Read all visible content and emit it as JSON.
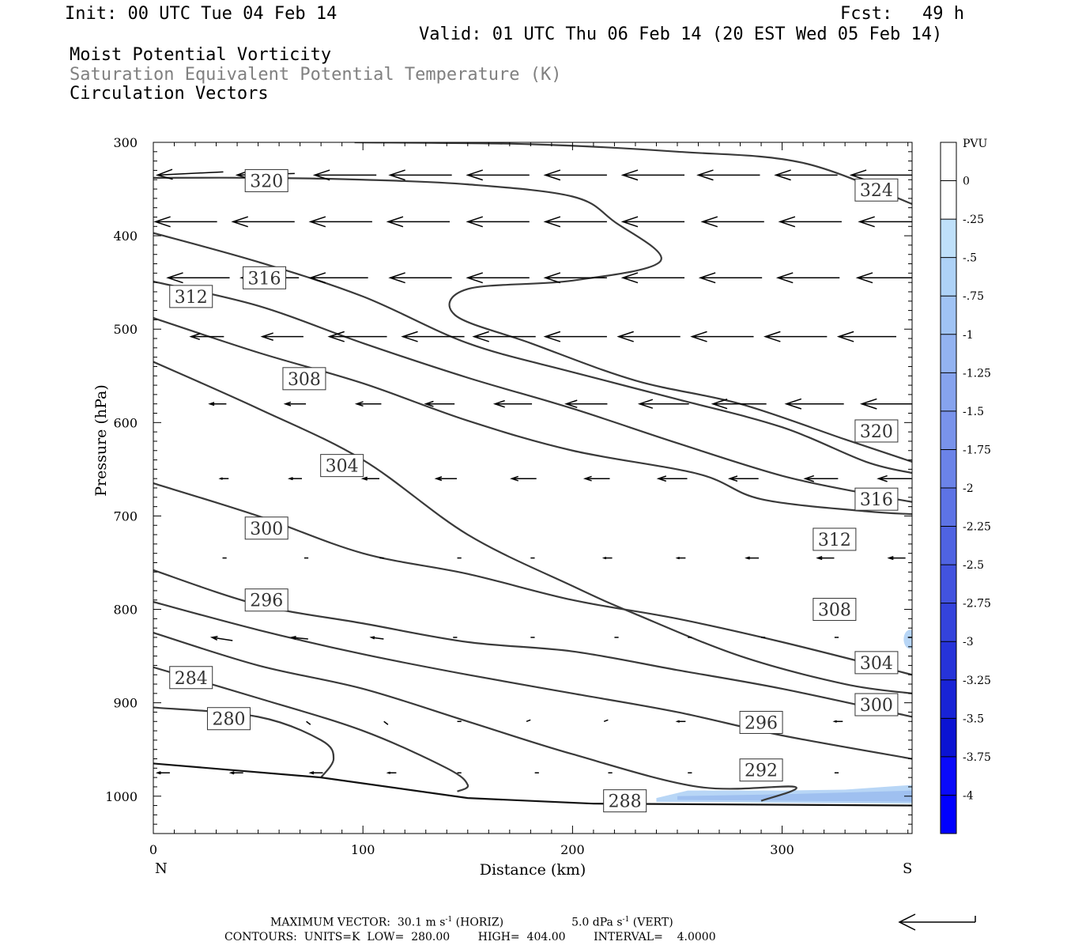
{
  "header": {
    "init": "Init: 00 UTC Tue 04 Feb 14",
    "fcst_label": "Fcst:",
    "fcst_value": "49 h",
    "valid": "Valid: 01 UTC Thu 06 Feb 14 (20 EST Wed 05 Feb 14)",
    "field1": "Moist Potential Vorticity",
    "field2": "Saturation Equivalent Potential Temperature (K)",
    "field3": "Circulation Vectors"
  },
  "footer": {
    "line1_a": "MAXIMUM VECTOR:  30.1 m s",
    "line1_b": "(HORIZ)",
    "line1_c": "5.0 dPa s",
    "line1_d": "(VERT)",
    "exp": "-1",
    "line2": "CONTOURS:  UNITS=K  LOW=  280.00        HIGH=  404.00        INTERVAL=    4.0000"
  },
  "chart_data": {
    "type": "line",
    "subtype": "cross-section contour with vectors",
    "xlabel": "Distance (km)",
    "ylabel": "Pressure (hPa)",
    "xlim": [
      0,
      362
    ],
    "ylim": [
      1040,
      300
    ],
    "x_ticks": [
      0,
      100,
      200,
      300
    ],
    "y_ticks": [
      300,
      400,
      500,
      600,
      700,
      800,
      900,
      1000
    ],
    "x_end_labels": {
      "left": "N",
      "right": "S"
    },
    "contour_color": "#3a3a3a",
    "contours": [
      {
        "label": "320",
        "points": [
          [
            0,
            338
          ],
          [
            50,
            338
          ],
          [
            100,
            340
          ],
          [
            150,
            345
          ],
          [
            200,
            358
          ],
          [
            220,
            385
          ],
          [
            242,
            427
          ],
          [
            200,
            448
          ],
          [
            150,
            457
          ],
          [
            144,
            485
          ],
          [
            180,
            515
          ],
          [
            230,
            555
          ],
          [
            280,
            580
          ],
          [
            330,
            618
          ],
          [
            362,
            642
          ]
        ],
        "label_at": [
          [
            54,
            341
          ],
          [
            345,
            609
          ]
        ]
      },
      {
        "label": "324",
        "points": [
          [
            96,
            300
          ],
          [
            180,
            302
          ],
          [
            250,
            310
          ],
          [
            310,
            322
          ],
          [
            362,
            366
          ]
        ],
        "label_at": [
          [
            345,
            351
          ]
        ]
      },
      {
        "label": "316",
        "points": [
          [
            0,
            397
          ],
          [
            50,
            428
          ],
          [
            100,
            465
          ],
          [
            150,
            515
          ],
          [
            200,
            546
          ],
          [
            250,
            575
          ],
          [
            300,
            605
          ],
          [
            340,
            642
          ],
          [
            362,
            654
          ]
        ],
        "label_at": [
          [
            53,
            445
          ],
          [
            345,
            682
          ]
        ]
      },
      {
        "label": "312",
        "points": [
          [
            0,
            449
          ],
          [
            50,
            475
          ],
          [
            100,
            515
          ],
          [
            150,
            552
          ],
          [
            200,
            585
          ],
          [
            250,
            622
          ],
          [
            300,
            657
          ],
          [
            340,
            676
          ],
          [
            362,
            685
          ]
        ],
        "label_at": [
          [
            18,
            465
          ],
          [
            325,
            725
          ]
        ]
      },
      {
        "label": "308",
        "points": [
          [
            0,
            488
          ],
          [
            50,
            525
          ],
          [
            100,
            558
          ],
          [
            150,
            598
          ],
          [
            200,
            630
          ],
          [
            260,
            655
          ],
          [
            290,
            682
          ],
          [
            340,
            695
          ],
          [
            362,
            698
          ]
        ],
        "label_at": [
          [
            72,
            553
          ],
          [
            325,
            800
          ]
        ]
      },
      {
        "label": "304",
        "points": [
          [
            0,
            535
          ],
          [
            50,
            585
          ],
          [
            100,
            640
          ],
          [
            150,
            720
          ],
          [
            200,
            775
          ],
          [
            230,
            805
          ],
          [
            280,
            850
          ],
          [
            330,
            880
          ],
          [
            362,
            890
          ]
        ],
        "label_at": [
          [
            90,
            646
          ],
          [
            345,
            857
          ]
        ]
      },
      {
        "label": "300",
        "points": [
          [
            0,
            665
          ],
          [
            50,
            700
          ],
          [
            100,
            740
          ],
          [
            150,
            762
          ],
          [
            200,
            790
          ],
          [
            250,
            810
          ],
          [
            300,
            835
          ],
          [
            362,
            870
          ]
        ],
        "label_at": [
          [
            54,
            713
          ],
          [
            345,
            902
          ]
        ]
      },
      {
        "label": "296",
        "points": [
          [
            0,
            758
          ],
          [
            50,
            795
          ],
          [
            100,
            815
          ],
          [
            150,
            835
          ],
          [
            200,
            845
          ],
          [
            250,
            865
          ],
          [
            300,
            885
          ],
          [
            362,
            915
          ]
        ],
        "label_at": [
          [
            54,
            790
          ],
          [
            290,
            921
          ]
        ]
      },
      {
        "label": "292",
        "points": [
          [
            0,
            792
          ],
          [
            50,
            822
          ],
          [
            100,
            848
          ],
          [
            150,
            870
          ],
          [
            200,
            890
          ],
          [
            250,
            910
          ],
          [
            300,
            935
          ],
          [
            362,
            960
          ]
        ],
        "label_at": [
          [
            290,
            972
          ]
        ]
      },
      {
        "label": "288",
        "points": [
          [
            0,
            825
          ],
          [
            50,
            860
          ],
          [
            100,
            885
          ],
          [
            150,
            920
          ],
          [
            200,
            955
          ],
          [
            260,
            990
          ],
          [
            306,
            990
          ],
          [
            290,
            1005
          ]
        ],
        "label_at": [
          [
            225,
            1005
          ]
        ]
      },
      {
        "label": "284",
        "points": [
          [
            0,
            862
          ],
          [
            50,
            895
          ],
          [
            100,
            930
          ],
          [
            140,
            970
          ],
          [
            150,
            988
          ],
          [
            145,
            995
          ]
        ],
        "label_at": [
          [
            18,
            873
          ]
        ]
      },
      {
        "label": "280",
        "points": [
          [
            0,
            905
          ],
          [
            50,
            915
          ],
          [
            80,
            940
          ],
          [
            86,
            960
          ],
          [
            80,
            980
          ]
        ],
        "label_at": [
          [
            36,
            917
          ]
        ]
      }
    ],
    "ground_line": [
      [
        0,
        965
      ],
      [
        80,
        980
      ],
      [
        150,
        1002
      ],
      [
        210,
        1008
      ],
      [
        362,
        1010
      ]
    ],
    "shading": {
      "label": "-0.25 to -0.75 PVU",
      "color": "#a9c8f2"
    },
    "colorbar": {
      "unit": "PVU",
      "labels": [
        "0",
        "-.25",
        "-.5",
        "-.75",
        "-1",
        "-1.25",
        "-1.5",
        "-1.75",
        "-2",
        "-2.25",
        "-2.5",
        "-2.75",
        "-3",
        "-3.25",
        "-3.5",
        "-3.75",
        "-4"
      ],
      "colors": [
        "#ffffff",
        "#ffffff",
        "#bfe0fa",
        "#aed2f7",
        "#a0c3f4",
        "#93b3f1",
        "#86a3ee",
        "#7993eb",
        "#6b83e8",
        "#5d73e5",
        "#4f63e2",
        "#4253df",
        "#3443dc",
        "#2633d9",
        "#1823d6",
        "#0b13d3",
        "#0a0afa",
        "#0000ff"
      ]
    },
    "vectors": [
      {
        "p": 335,
        "x": [
          2,
          40,
          77,
          113,
          150,
          187,
          224,
          260,
          297,
          333
        ],
        "len": [
          32,
          28,
          30,
          30,
          30,
          30,
          30,
          30,
          30,
          30
        ],
        "dy": [
          4,
          2,
          0,
          0,
          0,
          0,
          0,
          0,
          0,
          0
        ]
      },
      {
        "p": 385,
        "x": [
          1,
          38,
          75,
          112,
          150,
          187,
          224,
          262,
          299,
          337
        ],
        "len": [
          30,
          30,
          30,
          30,
          30,
          30,
          30,
          30,
          30,
          30
        ],
        "dy": [
          0,
          0,
          0,
          0,
          0,
          0,
          0,
          0,
          0,
          0
        ]
      },
      {
        "p": 445,
        "x": [
          7,
          42,
          75,
          113,
          150,
          187,
          224,
          261,
          298,
          336
        ],
        "len": [
          30,
          28,
          28,
          30,
          30,
          30,
          30,
          30,
          30,
          30
        ],
        "dy": [
          0,
          0,
          0,
          0,
          0,
          0,
          0,
          0,
          0,
          0
        ]
      },
      {
        "p": 508,
        "x": [
          18,
          52,
          84,
          119,
          153,
          187,
          222,
          257,
          292,
          327
        ],
        "len": [
          16,
          20,
          28,
          30,
          30,
          30,
          30,
          30,
          30,
          28
        ],
        "dy": [
          0,
          0,
          0,
          0,
          0,
          0,
          0,
          0,
          0,
          0
        ]
      },
      {
        "p": 580,
        "x": [
          27,
          63,
          97,
          130,
          163,
          197,
          232,
          267,
          302,
          338
        ],
        "len": [
          8,
          10,
          12,
          14,
          18,
          20,
          24,
          26,
          28,
          30
        ],
        "dy": [
          0,
          0,
          0,
          0,
          0,
          0,
          0,
          0,
          0,
          0
        ]
      },
      {
        "p": 660,
        "x": [
          32,
          65,
          100,
          135,
          171,
          206,
          241,
          275,
          311,
          346
        ],
        "len": [
          4,
          6,
          8,
          10,
          12,
          12,
          14,
          14,
          16,
          16
        ],
        "dy": [
          0,
          0,
          0,
          0,
          0,
          0,
          0,
          0,
          0,
          0
        ]
      },
      {
        "p": 745,
        "x": [
          33,
          72,
          108,
          145,
          180,
          215,
          250,
          283,
          317,
          351
        ],
        "len": [
          2,
          2,
          2,
          2,
          2,
          4,
          4,
          6,
          8,
          8
        ],
        "dy": [
          0,
          0,
          0,
          0,
          0,
          0,
          0,
          0,
          0,
          0
        ]
      },
      {
        "p": 830,
        "x": [
          28,
          66,
          104,
          143,
          180,
          220,
          255,
          290,
          325,
          360
        ],
        "len": [
          10,
          8,
          6,
          2,
          2,
          2,
          2,
          2,
          2,
          2
        ],
        "dy": [
          -4,
          -2,
          -2,
          0,
          0,
          0,
          0,
          0,
          0,
          0
        ]
      },
      {
        "p": 920,
        "x": [
          37,
          73,
          110,
          145,
          178,
          215,
          250,
          289,
          325,
          362
        ],
        "len": [
          2,
          2,
          2,
          2,
          2,
          2,
          4,
          4,
          4,
          4
        ],
        "dy": [
          -4,
          -4,
          -4,
          0,
          2,
          2,
          0,
          0,
          0,
          0
        ]
      },
      {
        "p": 975,
        "x": [
          2,
          37,
          75,
          112,
          145,
          182,
          217,
          255,
          290,
          325
        ],
        "len": [
          6,
          6,
          6,
          4,
          2,
          2,
          2,
          2,
          2,
          2
        ],
        "dy": [
          0,
          0,
          0,
          0,
          0,
          0,
          0,
          0,
          0,
          0
        ]
      }
    ]
  }
}
